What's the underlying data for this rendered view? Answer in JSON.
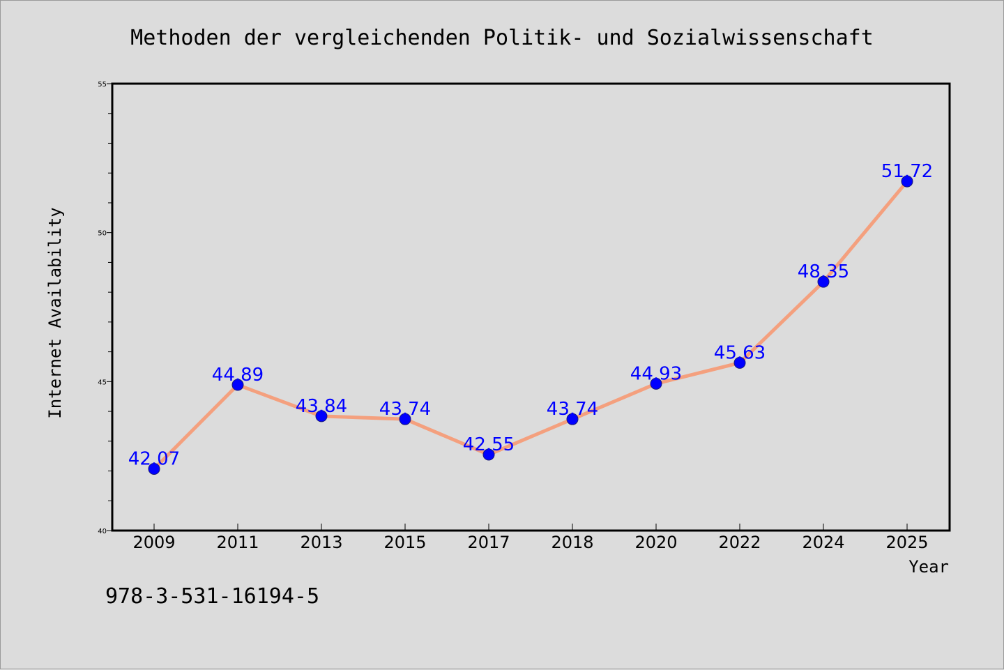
{
  "colors": {
    "background": "#dcdcdc",
    "line": "#f4a07e",
    "marker": "#0000ff",
    "data_label": "#0000ff",
    "axis": "#000000"
  },
  "chart_data": {
    "type": "line",
    "title": "Methoden der vergleichenden Politik- und Sozialwissenschaft",
    "xlabel": "Year",
    "ylabel": "Internet Availability",
    "categories": [
      "2009",
      "2011",
      "2013",
      "2015",
      "2017",
      "2018",
      "2020",
      "2022",
      "2024",
      "2025"
    ],
    "values": [
      42.07,
      44.89,
      43.84,
      43.74,
      42.55,
      43.74,
      44.93,
      45.63,
      48.35,
      51.72
    ],
    "data_labels": [
      "42.07",
      "44.89",
      "43.84",
      "43.74",
      "42.55",
      "43.74",
      "44.93",
      "45.63",
      "48.35",
      "51.72"
    ],
    "ylim": [
      40,
      55
    ],
    "y_ticks": [
      "40",
      "45",
      "50",
      "55"
    ],
    "y_minor_step": 1,
    "grid": false,
    "legend": "none",
    "annotation": "978-3-531-16194-5"
  }
}
